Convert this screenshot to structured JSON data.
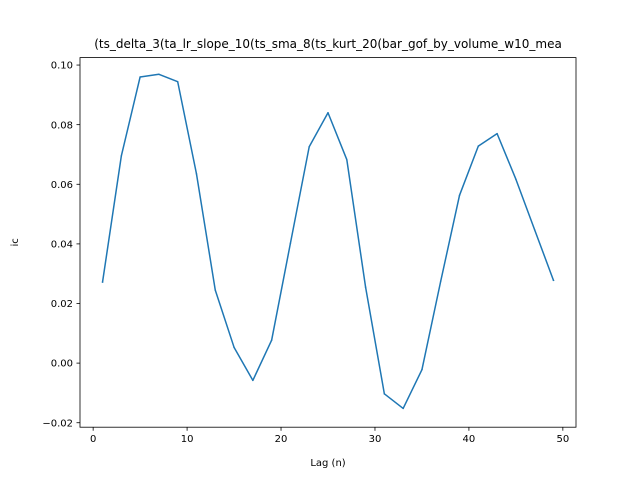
{
  "chart_data": {
    "type": "line",
    "title": "(ts_delta_3(ta_lr_slope_10(ts_sma_8(ts_kurt_20(bar_gof_by_volume_w10_mea",
    "xlabel": "Lag (n)",
    "ylabel": "ic",
    "xlim": [
      -1.4,
      51.4
    ],
    "ylim": [
      -0.0215,
      0.1025
    ],
    "x_ticks": [
      0,
      10,
      20,
      30,
      40,
      50
    ],
    "x_tick_labels": [
      "0",
      "10",
      "20",
      "30",
      "40",
      "50"
    ],
    "y_ticks": [
      -0.02,
      0.0,
      0.02,
      0.04,
      0.06,
      0.08,
      0.1
    ],
    "y_tick_labels": [
      "−0.02",
      "0.00",
      "0.02",
      "0.04",
      "0.06",
      "0.08",
      "0.10"
    ],
    "grid": false,
    "series": [
      {
        "color": "#1f77b4",
        "x": [
          1,
          3,
          5,
          7,
          9,
          11,
          13,
          15,
          17,
          19,
          21,
          23,
          25,
          27,
          29,
          31,
          33,
          35,
          37,
          39,
          41,
          43,
          45,
          47,
          49
        ],
        "y": [
          0.0272,
          0.0695,
          0.096,
          0.0969,
          0.0944,
          0.0635,
          0.0245,
          0.0053,
          -0.0058,
          0.0077,
          0.0402,
          0.0726,
          0.084,
          0.0683,
          0.0255,
          -0.0103,
          -0.0152,
          -0.0022,
          0.0275,
          0.0563,
          0.0728,
          0.077,
          0.0617,
          0.0447,
          0.0278
        ]
      }
    ]
  }
}
